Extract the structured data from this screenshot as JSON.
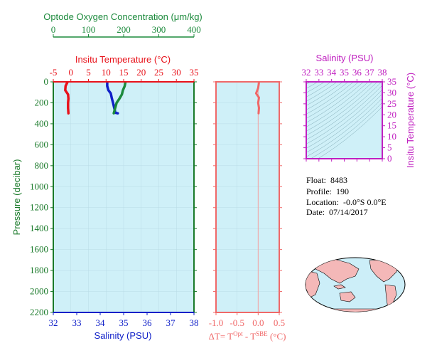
{
  "colors": {
    "background": "#cff0f8",
    "oxygen": "#1c8a3c",
    "temperature": "#e8121a",
    "salinity": "#1020c8",
    "delta": "#f06868",
    "pressure": "#1a7a2a",
    "ts_axis": "#c020c0",
    "land": "#f4b8b8",
    "ocean": "#cceef8"
  },
  "chart_data": [
    {
      "type": "line",
      "panel": "profile",
      "ylabel": "Pressure (decibar)",
      "ylim": [
        2200,
        0
      ],
      "yticks": [
        0,
        200,
        400,
        600,
        800,
        1000,
        1200,
        1400,
        1600,
        1800,
        2000,
        2200
      ],
      "axes": {
        "oxygen": {
          "label": "Optode Oxygen Concentration (μm/kg)",
          "range": [
            0,
            400
          ],
          "ticks": [
            0,
            100,
            200,
            300,
            400
          ],
          "position": "top"
        },
        "temperature": {
          "label": "Insitu Temperature (°C)",
          "range": [
            -5,
            35
          ],
          "ticks": [
            -5,
            0,
            5,
            10,
            15,
            20,
            25,
            30,
            35
          ],
          "position": "top"
        },
        "salinity": {
          "label": "Salinity (PSU)",
          "range": [
            32,
            38
          ],
          "ticks": [
            32,
            33,
            34,
            35,
            36,
            37,
            38
          ],
          "position": "bottom"
        }
      },
      "series": [
        {
          "axis": "temperature",
          "color": "#e8121a",
          "points": [
            [
              -1.0,
              5
            ],
            [
              -1.5,
              40
            ],
            [
              -1.6,
              80
            ],
            [
              -0.8,
              120
            ],
            [
              -0.7,
              160
            ],
            [
              -0.8,
              200
            ],
            [
              -0.8,
              250
            ],
            [
              -0.7,
              300
            ]
          ]
        },
        {
          "axis": "salinity",
          "color": "#1020c8",
          "points": [
            [
              34.3,
              5
            ],
            [
              34.3,
              40
            ],
            [
              34.35,
              80
            ],
            [
              34.45,
              110
            ],
            [
              34.5,
              160
            ],
            [
              34.55,
              200
            ],
            [
              34.6,
              250
            ],
            [
              34.65,
              295
            ],
            [
              34.75,
              300
            ]
          ]
        },
        {
          "axis": "oxygen",
          "color": "#1c8a3c",
          "points": [
            [
              205,
              5
            ],
            [
              203,
              40
            ],
            [
              198,
              80
            ],
            [
              195,
              120
            ],
            [
              188,
              160
            ],
            [
              180,
              200
            ],
            [
              176,
              250
            ],
            [
              172,
              300
            ]
          ]
        }
      ]
    },
    {
      "type": "line",
      "panel": "delta",
      "xlabel_main": "ΔT= T",
      "xlabel_sup1": "Opt",
      "xlabel_mid": " - T",
      "xlabel_sup2": "SBE",
      "xlabel_unit": " (°C)",
      "xlim": [
        -1.0,
        0.5
      ],
      "xticks": [
        "-1.0",
        "-0.5",
        "0.0",
        "0.5"
      ],
      "ylim": [
        2200,
        0
      ],
      "zero_line": 0.0,
      "series": [
        {
          "color": "#f06868",
          "points": [
            [
              0.02,
              5
            ],
            [
              0.0,
              60
            ],
            [
              -0.05,
              110
            ],
            [
              0.02,
              150
            ],
            [
              0.0,
              200
            ],
            [
              0.02,
              250
            ],
            [
              0.01,
              300
            ]
          ]
        }
      ]
    },
    {
      "type": "scatter",
      "panel": "ts",
      "title": "Salinity (PSU)",
      "ylabel": "Insitu Temperature (°C)",
      "xlim": [
        32,
        38
      ],
      "ylim": [
        0,
        35
      ],
      "xticks": [
        32,
        33,
        34,
        35,
        36,
        37,
        38
      ],
      "yticks": [
        0,
        5,
        10,
        15,
        20,
        25,
        30,
        35
      ]
    }
  ],
  "info": {
    "float_label": "Float:",
    "float_value": "8483",
    "profile_label": "Profile:",
    "profile_value": "190",
    "location_label": "Location:",
    "location_value": "-0.0°S   0.0°E",
    "date_label": "Date:",
    "date_value": "07/14/2017"
  }
}
